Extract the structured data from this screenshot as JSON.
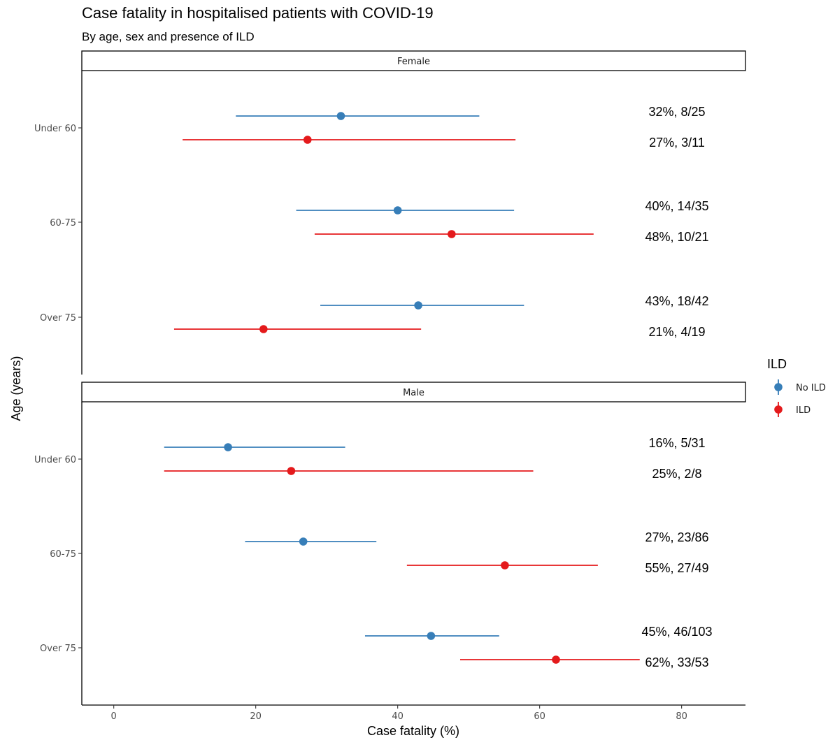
{
  "chart_data": {
    "type": "scatter",
    "subtype": "dot-and-whisker (faceted)",
    "title": "Case fatality in hospitalised patients with COVID-19",
    "subtitle": "By age, sex and presence of ILD",
    "xlabel": "Case fatality (%)",
    "ylabel": "Age (years)",
    "xlim": [
      -4.5,
      89
    ],
    "xticks": [
      0,
      20,
      40,
      60,
      80
    ],
    "categories": [
      "Under 60",
      "60-75",
      "Over 75"
    ],
    "grid": false,
    "legend": {
      "title": "ILD",
      "position": "right",
      "entries": [
        {
          "name": "No ILD",
          "color": "#377EB8"
        },
        {
          "name": "ILD",
          "color": "#E41A1C"
        }
      ]
    },
    "facets": [
      {
        "name": "Female",
        "rows": [
          {
            "category": "Under 60",
            "no_ild": {
              "value": 32,
              "low": 17.2,
              "high": 51.5,
              "label": "32%, 8/25"
            },
            "ild": {
              "value": 27.3,
              "low": 9.7,
              "high": 56.6,
              "label": "27%, 3/11"
            }
          },
          {
            "category": "60-75",
            "no_ild": {
              "value": 40,
              "low": 25.7,
              "high": 56.4,
              "label": "40%, 14/35"
            },
            "ild": {
              "value": 47.6,
              "low": 28.3,
              "high": 67.6,
              "label": "48%, 10/21"
            }
          },
          {
            "category": "Over 75",
            "no_ild": {
              "value": 42.9,
              "low": 29.1,
              "high": 57.8,
              "label": "43%, 18/42"
            },
            "ild": {
              "value": 21.1,
              "low": 8.5,
              "high": 43.3,
              "label": "21%, 4/19"
            }
          }
        ]
      },
      {
        "name": "Male",
        "rows": [
          {
            "category": "Under 60",
            "no_ild": {
              "value": 16.1,
              "low": 7.1,
              "high": 32.6,
              "label": "16%, 5/31"
            },
            "ild": {
              "value": 25,
              "low": 7.1,
              "high": 59.1,
              "label": "25%, 2/8"
            }
          },
          {
            "category": "60-75",
            "no_ild": {
              "value": 26.7,
              "low": 18.5,
              "high": 37,
              "label": "27%, 23/86"
            },
            "ild": {
              "value": 55.1,
              "low": 41.3,
              "high": 68.2,
              "label": "55%, 27/49"
            }
          },
          {
            "category": "Over 75",
            "no_ild": {
              "value": 44.7,
              "low": 35.4,
              "high": 54.3,
              "label": "45%, 46/103"
            },
            "ild": {
              "value": 62.3,
              "low": 48.8,
              "high": 74.1,
              "label": "62%, 33/53"
            }
          }
        ]
      }
    ]
  }
}
